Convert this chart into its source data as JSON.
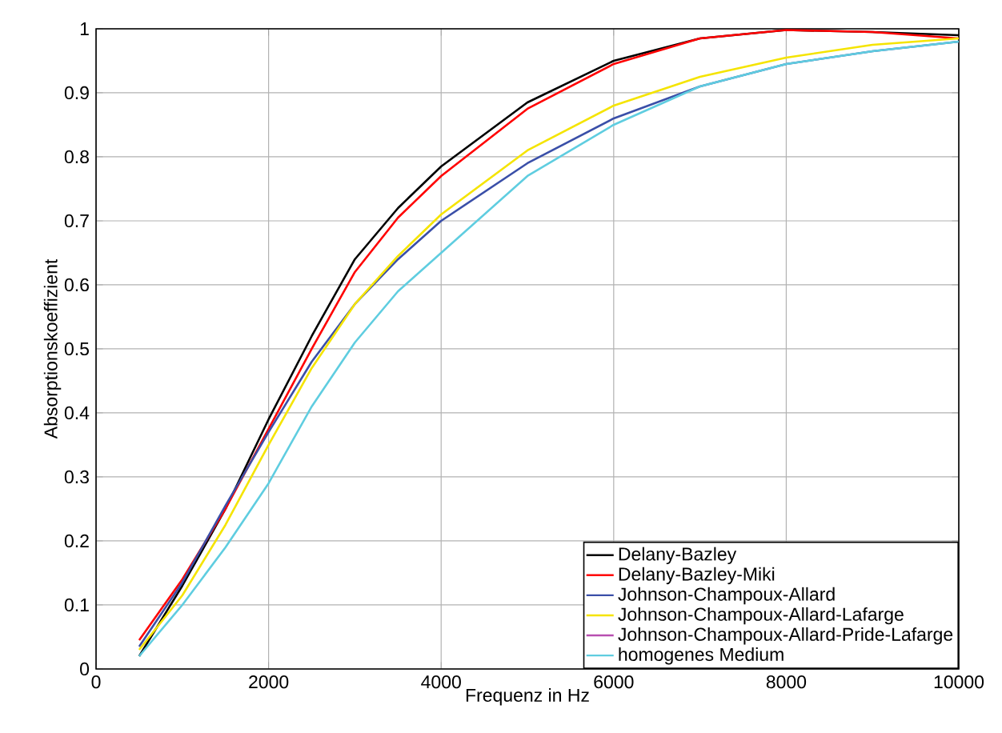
{
  "chart_data": {
    "type": "line",
    "xlabel": "Frequenz in Hz",
    "ylabel": "Absorptionskoeffizient",
    "x": [
      500,
      1000,
      1500,
      2000,
      2500,
      3000,
      3500,
      4000,
      5000,
      6000,
      7000,
      8000,
      9000,
      10000
    ],
    "series": [
      {
        "name": "Delany-Bazley",
        "color": "#000000",
        "values": [
          0.02,
          0.13,
          0.25,
          0.39,
          0.52,
          0.64,
          0.72,
          0.785,
          0.885,
          0.95,
          0.985,
          0.998,
          0.995,
          0.99
        ]
      },
      {
        "name": "Delany-Bazley-Miki",
        "color": "#ff0000",
        "values": [
          0.045,
          0.14,
          0.25,
          0.375,
          0.5,
          0.62,
          0.705,
          0.77,
          0.875,
          0.945,
          0.985,
          0.998,
          0.995,
          0.985
        ]
      },
      {
        "name": "Johnson-Champoux-Allard",
        "color": "#3a4fa8",
        "values": [
          0.035,
          0.135,
          0.255,
          0.37,
          0.48,
          0.57,
          0.64,
          0.7,
          0.79,
          0.86,
          0.91,
          0.945,
          0.965,
          0.98
        ]
      },
      {
        "name": "Johnson-Champoux-Allard-Lafarge",
        "color": "#f5e400",
        "values": [
          0.03,
          0.115,
          0.225,
          0.35,
          0.47,
          0.57,
          0.645,
          0.71,
          0.81,
          0.88,
          0.925,
          0.955,
          0.975,
          0.985
        ]
      },
      {
        "name": "Johnson-Champoux-Allard-Pride-Lafarge",
        "color": "#b84fb0",
        "values": [
          null,
          null,
          null,
          null,
          null,
          null,
          null,
          null,
          null,
          null,
          null,
          null,
          null,
          null
        ]
      },
      {
        "name": "homogenes Medium",
        "color": "#5fcde0",
        "values": [
          0.02,
          0.1,
          0.19,
          0.29,
          0.41,
          0.51,
          0.59,
          0.65,
          0.77,
          0.85,
          0.91,
          0.945,
          0.965,
          0.98
        ]
      }
    ],
    "xlim": [
      0,
      10000
    ],
    "ylim": [
      0,
      1
    ],
    "xticks": [
      0,
      2000,
      4000,
      6000,
      8000,
      10000
    ],
    "yticks": [
      0,
      0.1,
      0.2,
      0.3,
      0.4,
      0.5,
      0.6,
      0.7,
      0.8,
      0.9,
      1
    ],
    "grid": true,
    "legend": "bottom right",
    "line_style": "solid",
    "marker": "none"
  }
}
